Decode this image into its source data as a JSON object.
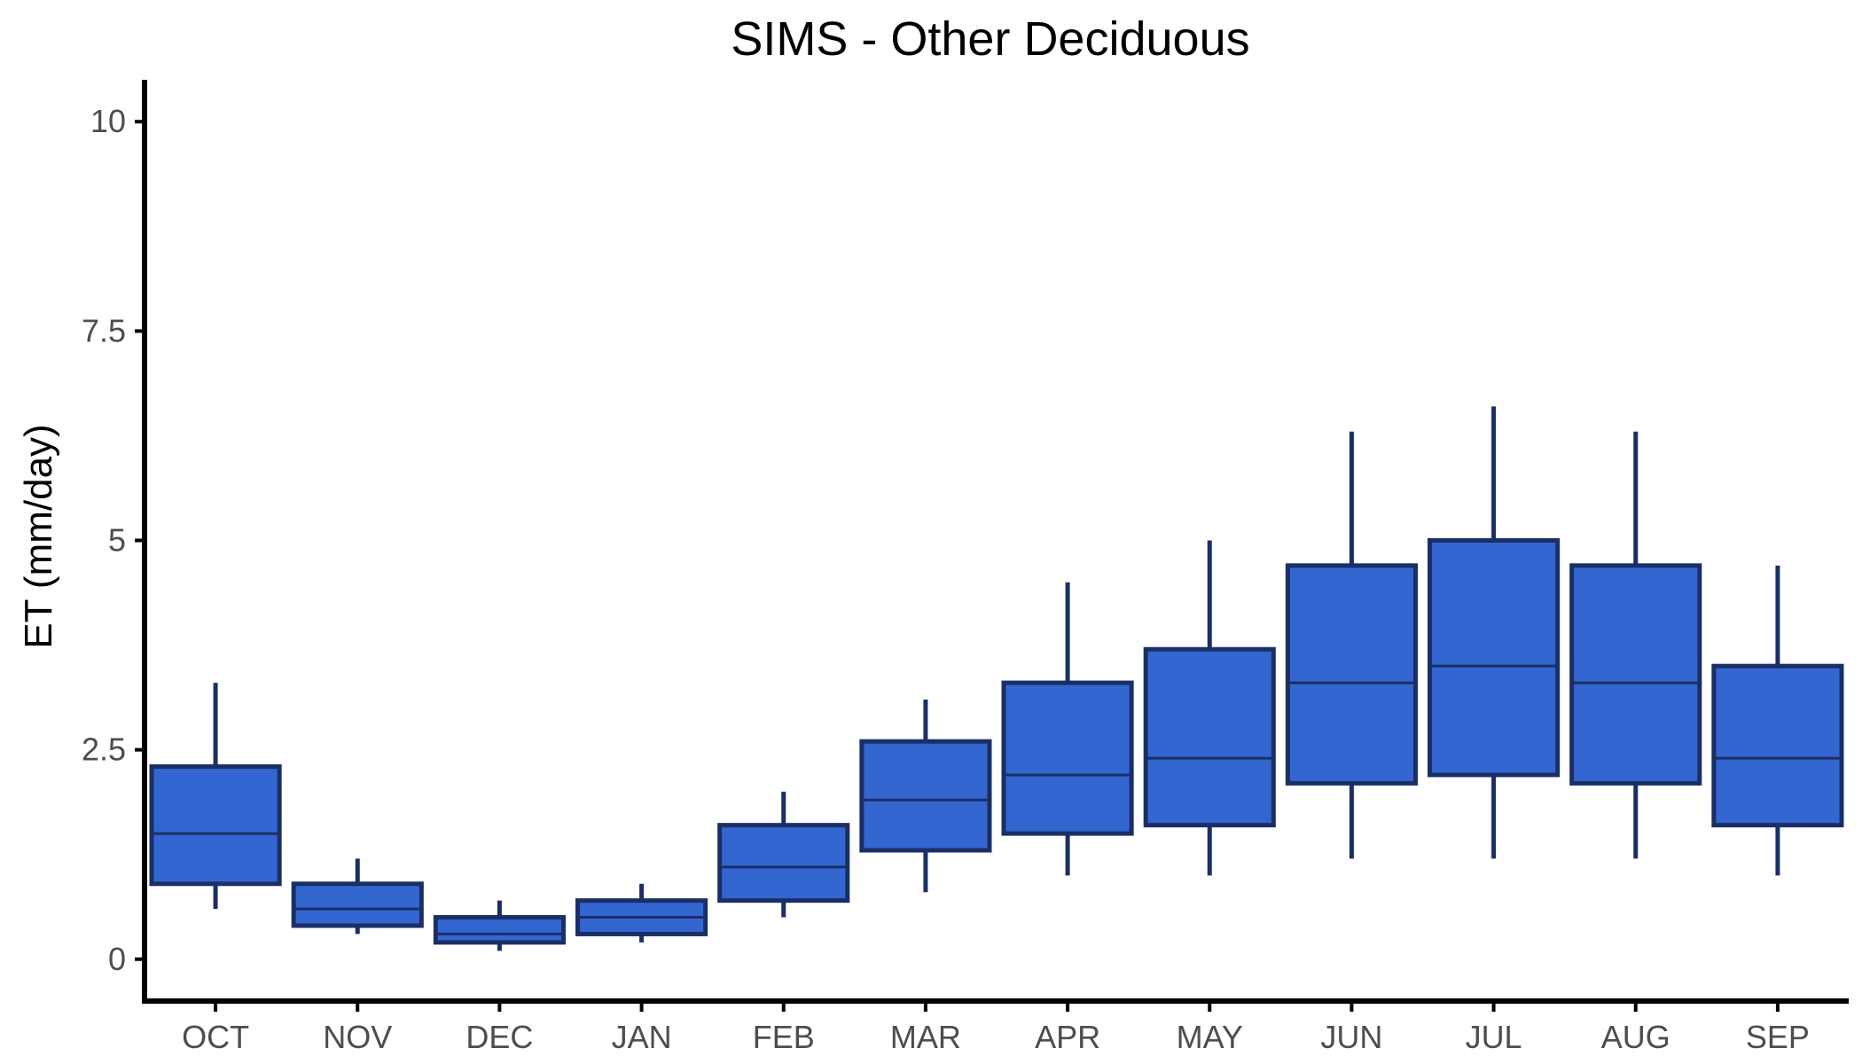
{
  "chart_data": {
    "type": "box",
    "title": "SIMS - Other Deciduous",
    "xlabel": "",
    "ylabel": "ET (mm/day)",
    "ylim": [
      -0.5,
      10.5
    ],
    "y_ticks": [
      0,
      2.5,
      5,
      7.5,
      10
    ],
    "y_tick_labels": [
      "0",
      "2.5",
      "5",
      "7.5",
      "10"
    ],
    "categories": [
      "OCT",
      "NOV",
      "DEC",
      "JAN",
      "FEB",
      "MAR",
      "APR",
      "MAY",
      "JUN",
      "JUL",
      "AUG",
      "SEP"
    ],
    "boxes": [
      {
        "min": 0.6,
        "q1": 0.9,
        "median": 1.5,
        "q3": 2.3,
        "max": 3.3
      },
      {
        "min": 0.3,
        "q1": 0.4,
        "median": 0.6,
        "q3": 0.9,
        "max": 1.2
      },
      {
        "min": 0.1,
        "q1": 0.2,
        "median": 0.3,
        "q3": 0.5,
        "max": 0.7
      },
      {
        "min": 0.2,
        "q1": 0.3,
        "median": 0.5,
        "q3": 0.7,
        "max": 0.9
      },
      {
        "min": 0.5,
        "q1": 0.7,
        "median": 1.1,
        "q3": 1.6,
        "max": 2.0
      },
      {
        "min": 0.8,
        "q1": 1.3,
        "median": 1.9,
        "q3": 2.6,
        "max": 3.1
      },
      {
        "min": 1.0,
        "q1": 1.5,
        "median": 2.2,
        "q3": 3.3,
        "max": 4.5
      },
      {
        "min": 1.0,
        "q1": 1.6,
        "median": 2.4,
        "q3": 3.7,
        "max": 5.0
      },
      {
        "min": 1.2,
        "q1": 2.1,
        "median": 3.3,
        "q3": 4.7,
        "max": 6.3
      },
      {
        "min": 1.2,
        "q1": 2.2,
        "median": 3.5,
        "q3": 5.0,
        "max": 6.6
      },
      {
        "min": 1.2,
        "q1": 2.1,
        "median": 3.3,
        "q3": 4.7,
        "max": 6.3
      },
      {
        "min": 1.0,
        "q1": 1.6,
        "median": 2.4,
        "q3": 3.5,
        "max": 4.7
      }
    ],
    "fill_color": "#3366d1",
    "border_color": "#1a2f66",
    "grid": false,
    "legend": "none"
  }
}
